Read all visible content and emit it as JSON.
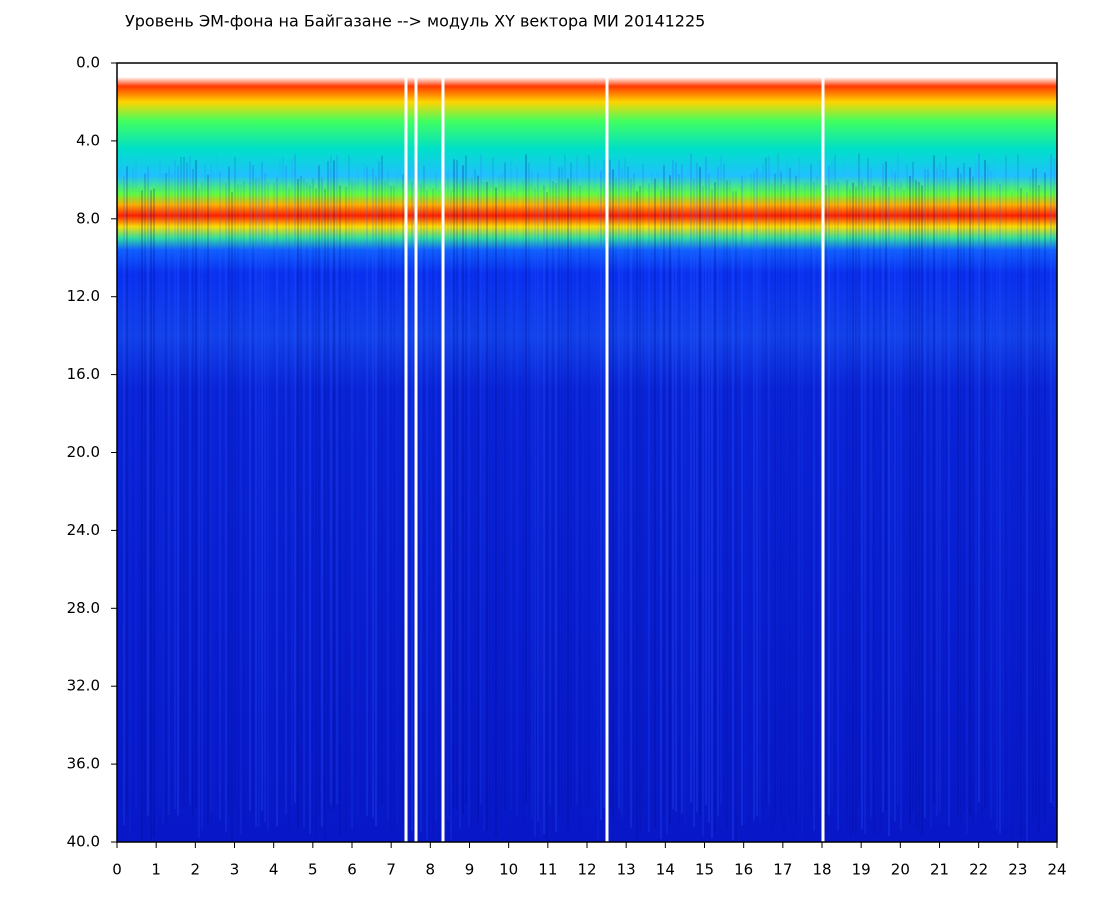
{
  "chart_data": {
    "type": "spectrogram",
    "title": "Уровень ЭМ-фона на Байгазане  -->  модуль XY вектора МИ  20141225",
    "xlim": [
      0,
      24
    ],
    "xticks": [
      0,
      1,
      2,
      3,
      4,
      5,
      6,
      7,
      8,
      9,
      10,
      11,
      12,
      13,
      14,
      15,
      16,
      17,
      18,
      19,
      20,
      21,
      22,
      23,
      24
    ],
    "ylim": [
      0,
      40
    ],
    "y_inverted": true,
    "yticks": [
      {
        "value": 0,
        "label": "0.0"
      },
      {
        "value": 4,
        "label": "4.0"
      },
      {
        "value": 8,
        "label": "8.0"
      },
      {
        "value": 12,
        "label": "12.0"
      },
      {
        "value": 16,
        "label": "16.0"
      },
      {
        "value": 20,
        "label": "20.0"
      },
      {
        "value": 24,
        "label": "24.0"
      },
      {
        "value": 28,
        "label": "28.0"
      },
      {
        "value": 32,
        "label": "32.0"
      },
      {
        "value": 36,
        "label": "36.0"
      },
      {
        "value": 40,
        "label": "40.0"
      }
    ]
  }
}
